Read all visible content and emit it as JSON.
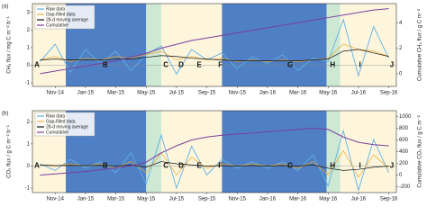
{
  "chart_data": [
    {
      "type": "line",
      "title": "(a)",
      "y_label": "CH₄ flux / mg C m⁻² h⁻¹",
      "y2_label": "Cumulative CH₄ flux / g C m⁻²",
      "categories": [
        null,
        "Nov-14",
        null,
        "Jan-15",
        null,
        "Mar-15",
        null,
        "May-15",
        null,
        "Jul-15",
        null,
        "Sep-15",
        null,
        "Nov-15",
        null,
        "Jan-16",
        null,
        "Mar-16",
        null,
        "May-16",
        null,
        "Jul-16",
        null,
        "Sep-16"
      ],
      "period_labels": [
        "A",
        "B",
        "C",
        "D",
        "E",
        "F",
        "G",
        "H",
        "I",
        "J"
      ],
      "ylim": [
        -1.2,
        3.5
      ],
      "yticks": [
        -1,
        0,
        1,
        2,
        3
      ],
      "y2lim": [
        -1,
        5.5
      ],
      "y2ticks": [
        0,
        2,
        4
      ],
      "legend": "upper left",
      "series": [
        {
          "name": "Raw data",
          "color": "#5fb0e8",
          "values": [
            0.2,
            1.2,
            -0.4,
            0.9,
            0.1,
            0.8,
            -0.3,
            0.6,
            1.1,
            -0.5,
            0.9,
            0.3,
            0.7,
            -0.2,
            0.5,
            0.1,
            0.6,
            -0.3,
            0.4,
            0.2,
            2.6,
            -0.6,
            2.2,
            0.4
          ]
        },
        {
          "name": "Gap-filled data",
          "color": "#f0a830",
          "values": [
            0.3,
            0.5,
            0.2,
            0.4,
            0.3,
            0.5,
            0.4,
            0.6,
            0.8,
            0.3,
            0.5,
            0.3,
            0.4,
            0.2,
            0.3,
            0.2,
            0.3,
            0.2,
            0.3,
            0.4,
            1.2,
            0.9,
            0.8,
            0.5
          ]
        },
        {
          "name": "28-d moving average",
          "color": "#111111",
          "values": [
            0.3,
            0.35,
            0.3,
            0.3,
            0.3,
            0.35,
            0.35,
            0.45,
            0.55,
            0.5,
            0.4,
            0.35,
            0.3,
            0.25,
            0.25,
            0.25,
            0.25,
            0.25,
            0.3,
            0.35,
            0.8,
            0.9,
            0.7,
            0.5
          ]
        },
        {
          "name": "Cumulative",
          "color": "#7b3f9e",
          "axis": "y2",
          "values": [
            0,
            0.2,
            0.4,
            0.6,
            0.8,
            1.0,
            1.3,
            1.6,
            2.0,
            2.3,
            2.6,
            2.8,
            3.0,
            3.2,
            3.4,
            3.6,
            3.8,
            4.0,
            4.2,
            4.4,
            4.6,
            4.8,
            5.0,
            5.1
          ]
        }
      ]
    },
    {
      "type": "line",
      "title": "(b)",
      "y_label": "CO₂ flux / g C m⁻² h⁻¹",
      "y2_label": "Cumulative CO₂ flux / g C m⁻²",
      "categories": [
        null,
        "Nov-14",
        null,
        "Jan-15",
        null,
        "Mar-15",
        null,
        "May-15",
        null,
        "Jul-15",
        null,
        "Sep-15",
        null,
        "Nov-15",
        null,
        "Jan-16",
        null,
        "Mar-16",
        null,
        "May-16",
        null,
        "Jul-16",
        null,
        "Sep-16"
      ],
      "period_labels": [
        "A",
        "B",
        "C",
        "D",
        "E",
        "F",
        "G",
        "H",
        "I",
        "J"
      ],
      "ylim": [
        -1.2,
        2.5
      ],
      "yticks": [
        -1,
        0,
        1,
        2
      ],
      "y2lim": [
        -300,
        1100
      ],
      "y2ticks": [
        -200,
        0,
        200,
        400,
        600,
        800,
        1000
      ],
      "legend": "upper left",
      "series": [
        {
          "name": "Raw data",
          "color": "#5fb0e8",
          "values": [
            0.1,
            -0.2,
            0.3,
            -0.1,
            0.2,
            -0.3,
            0.6,
            -0.8,
            1.4,
            -1.0,
            0.9,
            -0.4,
            0.3,
            -0.1,
            0.2,
            -0.1,
            0.2,
            -0.2,
            0.5,
            -0.9,
            1.6,
            -1.1,
            1.2,
            -0.3
          ]
        },
        {
          "name": "Gap-filled data",
          "color": "#f0a830",
          "values": [
            0.05,
            0.0,
            0.1,
            0.0,
            0.1,
            -0.1,
            0.2,
            -0.3,
            0.6,
            -0.4,
            0.4,
            -0.1,
            0.1,
            0.0,
            0.1,
            0.0,
            0.1,
            -0.1,
            0.2,
            -0.4,
            0.7,
            -0.5,
            0.5,
            -0.1
          ]
        },
        {
          "name": "28-d moving average",
          "color": "#111111",
          "values": [
            0.05,
            0.02,
            0.03,
            0.02,
            0.03,
            0.0,
            0.05,
            -0.05,
            0.2,
            0.1,
            0.05,
            0.0,
            0.02,
            0.0,
            0.02,
            0.0,
            0.02,
            0.0,
            0.05,
            -0.1,
            -0.2,
            -0.15,
            -0.05,
            0.0
          ]
        },
        {
          "name": "Cumulative",
          "color": "#7b3f9e",
          "axis": "y2",
          "values": [
            0,
            20,
            40,
            60,
            90,
            120,
            160,
            220,
            380,
            500,
            600,
            650,
            680,
            700,
            720,
            740,
            760,
            780,
            800,
            780,
            650,
            560,
            520,
            500
          ]
        }
      ]
    }
  ]
}
